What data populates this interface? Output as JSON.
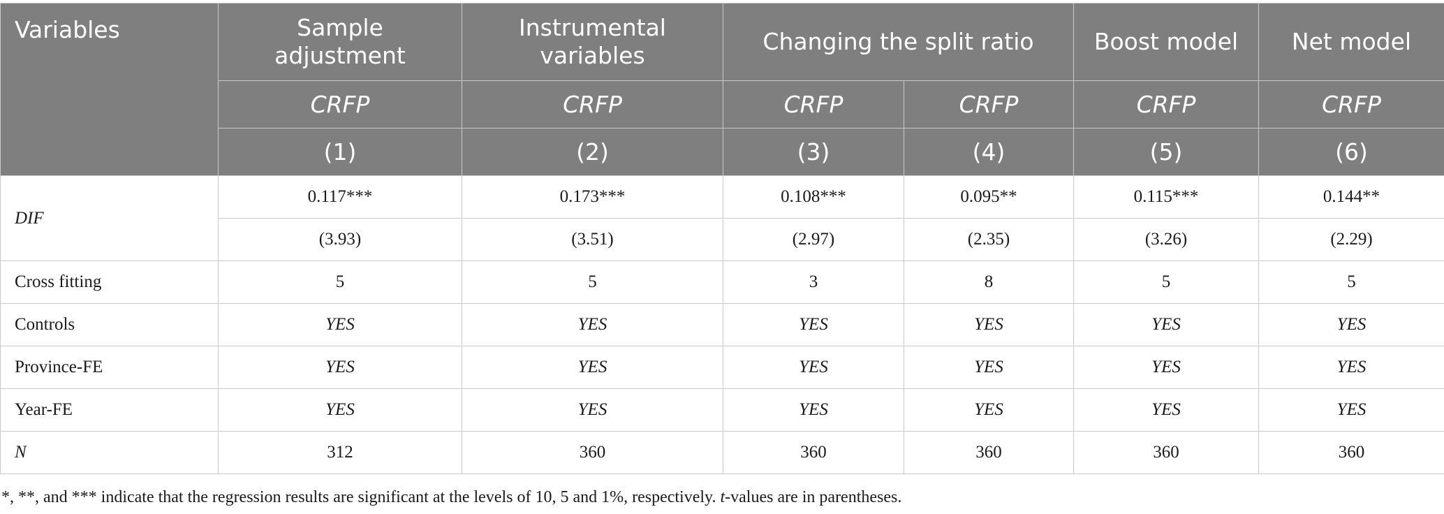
{
  "header": {
    "variables_label": "Variables",
    "groups": [
      "Sample adjustment",
      "Instrumental variables",
      "Changing the split ratio",
      "Boost model",
      "Net model"
    ],
    "dependent_var": [
      "CRFP",
      "CRFP",
      "CRFP",
      "CRFP",
      "CRFP",
      "CRFP"
    ],
    "col_numbers": [
      "(1)",
      "(2)",
      "(3)",
      "(4)",
      "(5)",
      "(6)"
    ]
  },
  "rows": {
    "dif": {
      "label": "DIF",
      "coef": [
        "0.117***",
        "0.173***",
        "0.108***",
        "0.095**",
        "0.115***",
        "0.144**"
      ],
      "tval": [
        "(3.93)",
        "(3.51)",
        "(2.97)",
        "(2.35)",
        "(3.26)",
        "(2.29)"
      ]
    },
    "cross_fitting": {
      "label": "Cross fitting",
      "values": [
        "5",
        "5",
        "3",
        "8",
        "5",
        "5"
      ]
    },
    "controls": {
      "label": "Controls",
      "values": [
        "YES",
        "YES",
        "YES",
        "YES",
        "YES",
        "YES"
      ]
    },
    "province_fe": {
      "label": "Province-FE",
      "values": [
        "YES",
        "YES",
        "YES",
        "YES",
        "YES",
        "YES"
      ]
    },
    "year_fe": {
      "label": "Year-FE",
      "values": [
        "YES",
        "YES",
        "YES",
        "YES",
        "YES",
        "YES"
      ]
    },
    "n": {
      "label": "N",
      "values": [
        "312",
        "360",
        "360",
        "360",
        "360",
        "360"
      ]
    }
  },
  "note": {
    "part1": "*, **, and *** indicate that the regression results are significant at the levels of 10, 5 and 1%, respectively. ",
    "t_italic": "t",
    "part2": "-values are in parentheses."
  }
}
